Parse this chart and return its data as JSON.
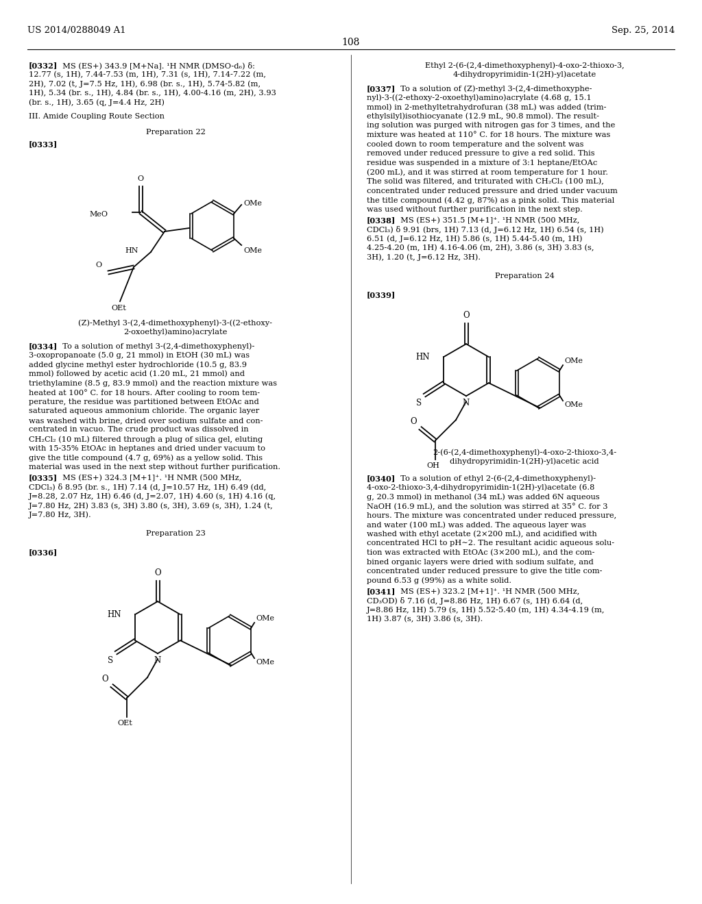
{
  "background_color": "#ffffff",
  "header_left": "US 2014/0288049 A1",
  "header_right": "Sep. 25, 2014",
  "page_number": "108"
}
